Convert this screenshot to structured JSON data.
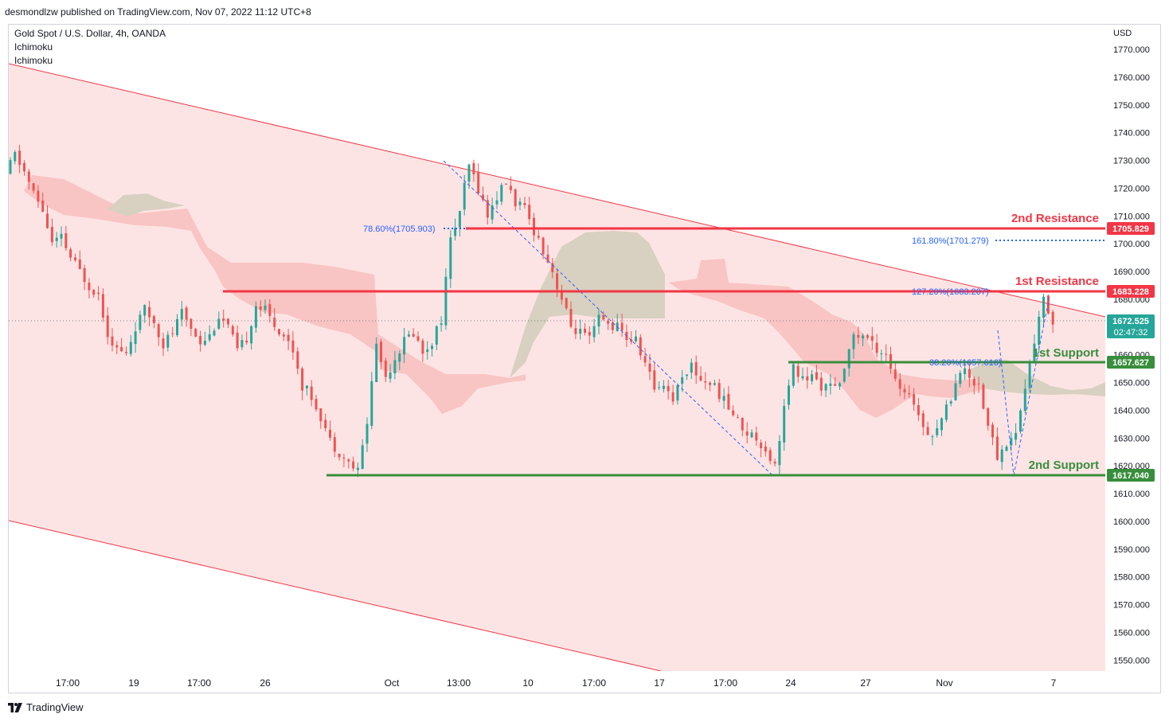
{
  "header": {
    "published": "desmondlzw published on TradingView.com, Nov 07, 2022 11:12 UTC+8"
  },
  "legend": {
    "symbol": "Gold Spot / U.S. Dollar, 4h, OANDA",
    "indicator1": "Ichimoku",
    "indicator2": "Ichimoku"
  },
  "footer": {
    "brand": "TradingView"
  },
  "colors": {
    "bull": "#26a69a",
    "bear": "#ef5350",
    "channel_fill": "#fde4e4",
    "cloud_red": "#f9c4c4",
    "cloud_grey": "#d8d0c0",
    "resistance": "#f23645",
    "support": "#388e3c",
    "fib": "#2962ff",
    "price_tag": "#26a69a"
  },
  "chart_data": {
    "type": "candlestick",
    "currency": "USD",
    "ylim": [
      1545,
      1778
    ],
    "y_ticks": [
      1550,
      1560,
      1570,
      1580,
      1590,
      1600,
      1610,
      1620,
      1630,
      1640,
      1650,
      1660,
      1670,
      1680,
      1690,
      1700,
      1710,
      1720,
      1730,
      1740,
      1750,
      1760,
      1770
    ],
    "x_ticks": [
      "17:00",
      "19",
      "17:00",
      "26",
      "Oct",
      "13:00",
      "10",
      "17:00",
      "17",
      "17:00",
      "24",
      "27",
      "Nov",
      "7"
    ],
    "levels": [
      {
        "name": "2nd Resistance",
        "value": 1705.829,
        "label": "1705.829",
        "kind": "resistance"
      },
      {
        "name": "1st Resistance",
        "value": 1683.228,
        "label": "1683.228",
        "kind": "resistance"
      },
      {
        "name": "1st Support",
        "value": 1657.627,
        "label": "1657.627",
        "kind": "support"
      },
      {
        "name": "2nd Support",
        "value": 1617.04,
        "label": "1617.040",
        "kind": "support"
      }
    ],
    "current_price": {
      "value": 1672.525,
      "label": "1672.525",
      "countdown": "02:47:32"
    },
    "fib_labels": [
      {
        "text": "78.60%(1705.903)",
        "value": 1705.903
      },
      {
        "text": "161.80%(1701.279)",
        "value": 1701.279
      },
      {
        "text": "127.20%(1683.207)",
        "value": 1683.207
      },
      {
        "text": "38.20%(1657.616)",
        "value": 1657.616
      }
    ],
    "path_points": [
      1725,
      1732,
      1726,
      1718,
      1712,
      1700,
      1702,
      1695,
      1690,
      1685,
      1682,
      1668,
      1662,
      1660,
      1670,
      1676,
      1672,
      1664,
      1668,
      1675,
      1670,
      1665,
      1667,
      1674,
      1670,
      1661,
      1666,
      1678,
      1676,
      1671,
      1667,
      1662,
      1649,
      1645,
      1638,
      1629,
      1625,
      1621,
      1618,
      1636,
      1664,
      1652,
      1659,
      1665,
      1668,
      1661,
      1665,
      1673,
      1701,
      1712,
      1728,
      1720,
      1710,
      1717,
      1722,
      1715,
      1712,
      1705,
      1698,
      1690,
      1680,
      1670,
      1668,
      1665,
      1673,
      1671,
      1670,
      1666,
      1665,
      1657,
      1648,
      1650,
      1644,
      1653,
      1656,
      1651,
      1650,
      1646,
      1641,
      1636,
      1632,
      1630,
      1626,
      1620,
      1641,
      1655,
      1651,
      1652,
      1649,
      1648,
      1648,
      1664,
      1667,
      1666,
      1662,
      1661,
      1650,
      1645,
      1643,
      1635,
      1631,
      1637,
      1645,
      1655,
      1652,
      1649,
      1635,
      1623,
      1628,
      1632,
      1648,
      1665,
      1680,
      1672
    ]
  }
}
